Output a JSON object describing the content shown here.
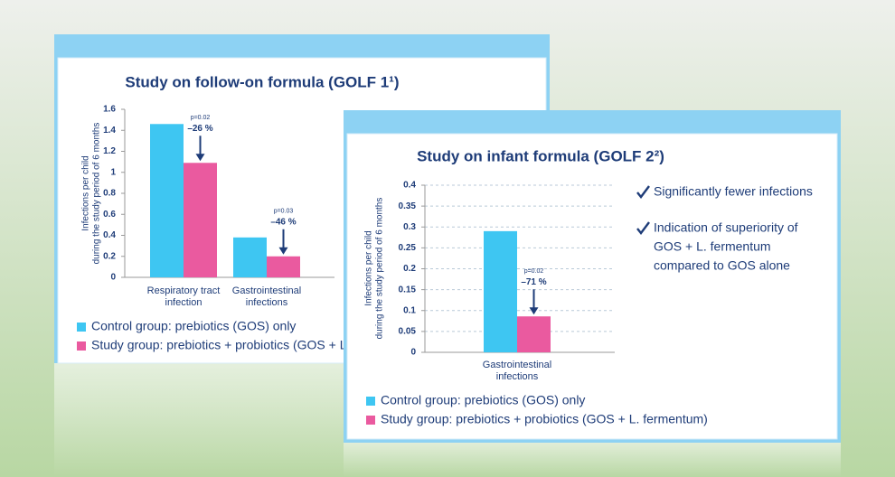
{
  "chart_data": [
    {
      "type": "bar",
      "title": "Study on follow-on formula (GOLF 1¹)",
      "ylabel": [
        "Infections per child",
        "during the study period of 6 months"
      ],
      "categories": [
        "Respiratory tract infection",
        "Gastrointestinal infections"
      ],
      "series": [
        {
          "name": "Control group: prebiotics (GOS) only",
          "color": "#3ec6f2",
          "values": [
            1.46,
            0.38
          ]
        },
        {
          "name": "Study group: prebiotics + probiotics (GOS + L. fermentum)",
          "color": "#ea5a9f",
          "values": [
            1.09,
            0.2
          ]
        }
      ],
      "annotations": [
        {
          "p": "p=0.02",
          "change": "–26 %"
        },
        {
          "p": "p=0.03",
          "change": "–46 %"
        }
      ],
      "ylim": [
        0,
        1.6
      ],
      "yticks": [
        0,
        0.2,
        0.4,
        0.6,
        0.8,
        1,
        1.2,
        1.4,
        1.6
      ],
      "grid": false
    },
    {
      "type": "bar",
      "title": "Study on infant formula (GOLF 2²)",
      "ylabel": [
        "Infections per child",
        "during the study period of 6 months"
      ],
      "categories": [
        "Gastrointestinal infections"
      ],
      "series": [
        {
          "name": "Control group: prebiotics (GOS) only",
          "color": "#3ec6f2",
          "values": [
            0.29
          ]
        },
        {
          "name": "Study group: prebiotics + probiotics (GOS + L. fermentum)",
          "color": "#ea5a9f",
          "values": [
            0.086
          ]
        }
      ],
      "annotations": [
        {
          "p": "p=0.02",
          "change": "–71 %"
        }
      ],
      "notes": [
        {
          "lines": [
            "Significantly fewer infections"
          ]
        },
        {
          "lines": [
            "Indication of superiority of",
            "GOS + L. fermentum",
            "compared to GOS alone"
          ]
        }
      ],
      "ylim": [
        0,
        0.4
      ],
      "yticks": [
        0,
        0.05,
        0.1,
        0.15,
        0.2,
        0.25,
        0.3,
        0.35,
        0.4
      ],
      "grid": true
    }
  ]
}
